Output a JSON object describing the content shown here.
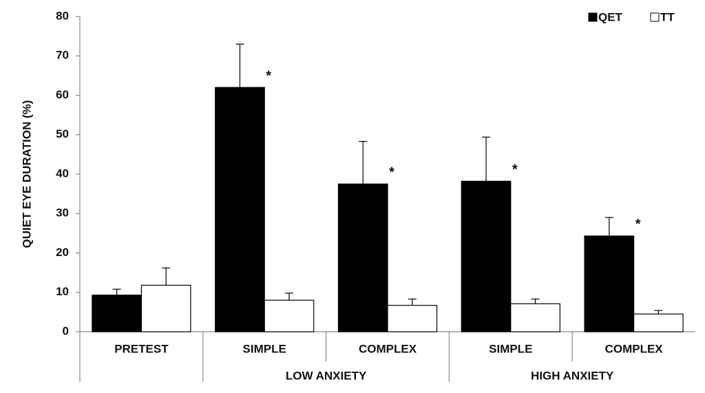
{
  "chart_data": {
    "type": "bar",
    "y_label": "QUIET EYE DURATION (%)",
    "categories": [
      "PRETEST",
      "SIMPLE",
      "COMPLEX",
      "SIMPLE",
      "COMPLEX"
    ],
    "groups": [
      {
        "name": "LOW ANXIETY",
        "start": 1,
        "end": 2
      },
      {
        "name": "HIGH ANXIETY",
        "start": 3,
        "end": 4
      }
    ],
    "series": [
      {
        "name": "QET",
        "color": "#000000",
        "values": [
          9.3,
          62,
          37.5,
          38.2,
          24.3
        ],
        "errors": [
          1.5,
          11,
          10.8,
          11.2,
          4.7
        ],
        "markers": [
          null,
          "*",
          "*",
          "*",
          "*"
        ]
      },
      {
        "name": "TT",
        "color": "#ffffff",
        "values": [
          11.8,
          8,
          6.7,
          7.1,
          4.5
        ],
        "errors": [
          4.4,
          1.8,
          1.6,
          1.2,
          0.9
        ]
      }
    ],
    "ylim": [
      0,
      80
    ],
    "yticks": [
      0,
      10,
      20,
      30,
      40,
      50,
      60,
      70,
      80
    ],
    "legend": "top-right"
  }
}
